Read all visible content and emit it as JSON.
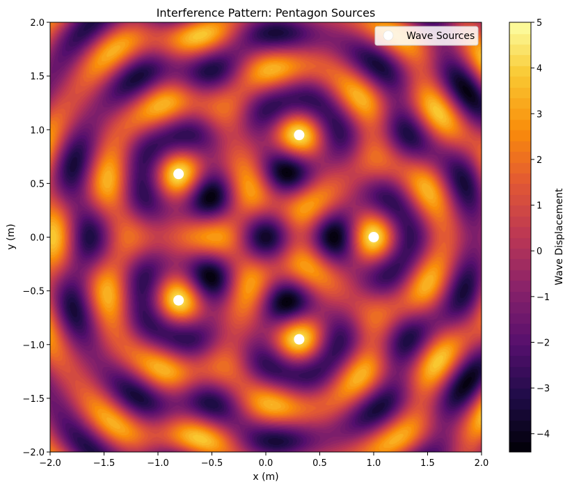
{
  "chart_data": {
    "type": "heatmap",
    "title": "Interference Pattern: Pentagon Sources",
    "xlabel": "x (m)",
    "ylabel": "y (m)",
    "xlim": [
      -2.0,
      2.0
    ],
    "ylim": [
      -2.0,
      2.0
    ],
    "x_ticks": [
      "−2.0",
      "−1.5",
      "−1.0",
      "−0.5",
      "0.0",
      "0.5",
      "1.0",
      "1.5",
      "2.0"
    ],
    "y_ticks": [
      "−2.0",
      "−1.5",
      "−1.0",
      "−0.5",
      "0.0",
      "0.5",
      "1.0",
      "1.5",
      "2.0"
    ],
    "colormap": "inferno",
    "colorbar": {
      "label": "Wave Displacement",
      "range": [
        -4.4,
        5.0
      ],
      "ticks": [
        "−4",
        "−3",
        "−2",
        "−1",
        "0",
        "1",
        "2",
        "3",
        "4",
        "5"
      ]
    },
    "sources": {
      "name": "Wave Sources",
      "color": "#ffffff",
      "points": [
        {
          "x": 1.0,
          "y": 0.0
        },
        {
          "x": 0.309,
          "y": 0.951
        },
        {
          "x": -0.809,
          "y": 0.588
        },
        {
          "x": -0.809,
          "y": -0.588
        },
        {
          "x": 0.309,
          "y": -0.951
        }
      ]
    },
    "legend": {
      "position": "top-right",
      "entry": "Wave Sources"
    }
  }
}
